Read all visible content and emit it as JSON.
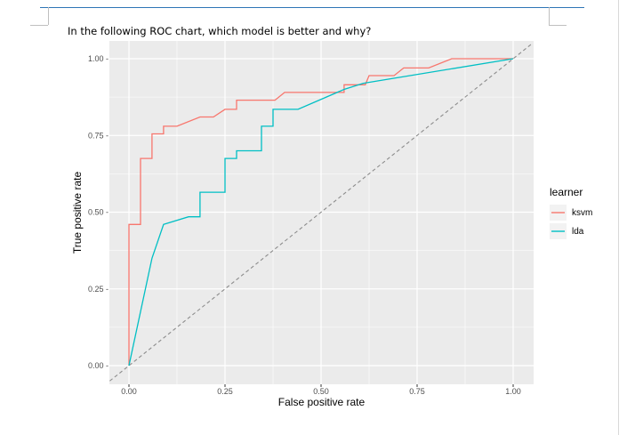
{
  "question": "In the following ROC chart, which model is better and why?",
  "colors": {
    "panel_bg": "#ebebeb",
    "grid": "#ffffff",
    "ksvm": "#f8766d",
    "lda": "#00bfc4",
    "diagonal": "#8c8c8c",
    "axis_text": "#4d4d4d"
  },
  "chart_data": {
    "type": "line",
    "title": "",
    "xlabel": "False positive rate",
    "ylabel": "True positive rate",
    "xlim": [
      -0.05,
      1.05
    ],
    "ylim": [
      -0.05,
      1.05
    ],
    "x_ticks": [
      0,
      0.25,
      0.5,
      0.75,
      1
    ],
    "x_tick_labels": [
      "0.00",
      "0.25",
      "0.50",
      "0.75",
      "1.00"
    ],
    "y_ticks": [
      0,
      0.25,
      0.5,
      0.75,
      1
    ],
    "y_tick_labels": [
      "0.00 -",
      "0.25 -",
      "0.50 -",
      "0.75 -",
      "1.00 -"
    ],
    "grid": true,
    "legend_title": "learner",
    "legend_position": "right",
    "reference_line": {
      "style": "dashed",
      "x": [
        -0.05,
        1.05
      ],
      "y": [
        -0.05,
        1.05
      ]
    },
    "series": [
      {
        "name": "ksvm",
        "x": [
          0,
          0,
          0.03,
          0.03,
          0.06,
          0.06,
          0.09,
          0.09,
          0.125,
          0.185,
          0.22,
          0.25,
          0.28,
          0.28,
          0.38,
          0.405,
          0.43,
          0.56,
          0.56,
          0.615,
          0.625,
          0.69,
          0.715,
          0.78,
          0.84,
          0.845,
          1
        ],
        "y": [
          0,
          0.46,
          0.46,
          0.675,
          0.675,
          0.755,
          0.755,
          0.78,
          0.78,
          0.81,
          0.81,
          0.835,
          0.835,
          0.865,
          0.865,
          0.89,
          0.89,
          0.89,
          0.915,
          0.915,
          0.945,
          0.945,
          0.97,
          0.97,
          1.0,
          1.0,
          1.0
        ]
      },
      {
        "name": "lda",
        "x": [
          0,
          0.06,
          0.09,
          0.155,
          0.185,
          0.185,
          0.25,
          0.25,
          0.28,
          0.28,
          0.345,
          0.345,
          0.375,
          0.375,
          0.44,
          0.56,
          0.61,
          1
        ],
        "y": [
          0,
          0.35,
          0.46,
          0.485,
          0.485,
          0.565,
          0.565,
          0.675,
          0.675,
          0.7,
          0.7,
          0.78,
          0.78,
          0.835,
          0.835,
          0.9,
          0.92,
          1.0
        ]
      }
    ]
  }
}
